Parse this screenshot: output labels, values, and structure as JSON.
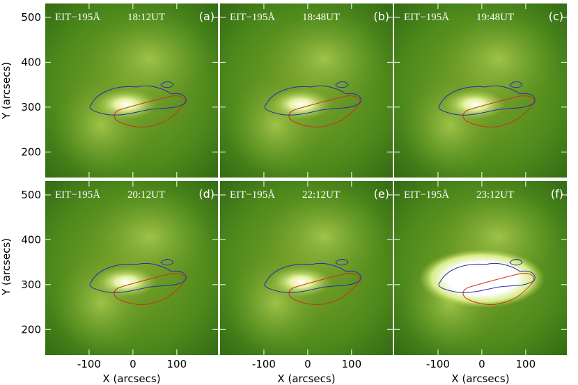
{
  "figure": {
    "x_label": "X (arcsecs)",
    "y_label": "Y (arcsecs)",
    "xlim": [
      -200,
      194
    ],
    "ylim": [
      143,
      531
    ],
    "xticks": [
      -100,
      0,
      100
    ],
    "yticks": [
      200,
      300,
      400,
      500
    ],
    "panels": [
      {
        "instrument": "EIT−195Å",
        "time": "18:12UT",
        "label": "(a)"
      },
      {
        "instrument": "EIT−195Å",
        "time": "18:48UT",
        "label": "(b)"
      },
      {
        "instrument": "EIT−195Å",
        "time": "19:48UT",
        "label": "(c)"
      },
      {
        "instrument": "EIT−195Å",
        "time": "20:12UT",
        "label": "(d)"
      },
      {
        "instrument": "EIT−195Å",
        "time": "22:12UT",
        "label": "(e)"
      },
      {
        "instrument": "EIT−195Å",
        "time": "23:12UT",
        "label": "(f)"
      }
    ]
  }
}
